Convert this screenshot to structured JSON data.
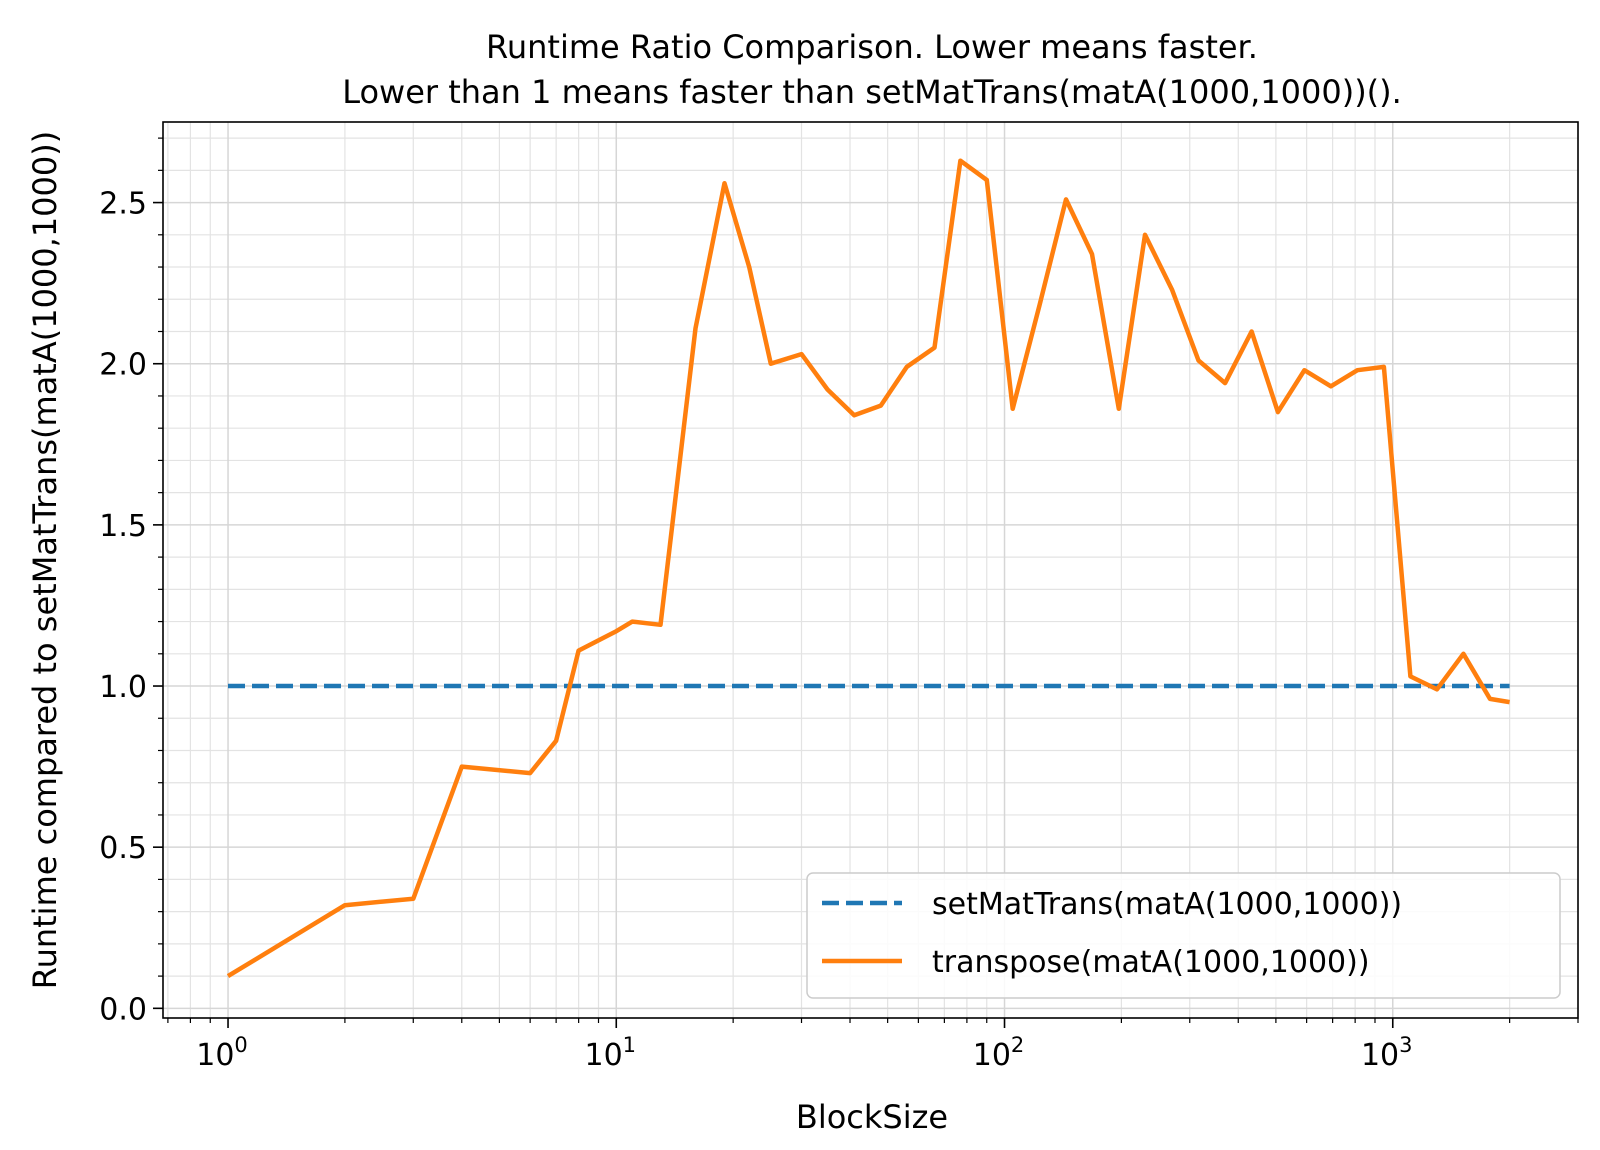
{
  "chart_data": {
    "type": "line",
    "title": "Runtime Ratio Comparison. Lower means faster.",
    "subtitle": "Lower than 1 means faster than setMatTrans(matA(1000,1000))().",
    "xlabel": "BlockSize",
    "ylabel": "Runtime compared to setMatTrans(matA(1000,1000))",
    "xscale": "log",
    "xlim": [
      0.68,
      3000
    ],
    "ylim": [
      -0.03,
      2.75
    ],
    "x_ticks": [
      {
        "value": 1,
        "base": "10",
        "exp": "0"
      },
      {
        "value": 10,
        "base": "10",
        "exp": "1"
      },
      {
        "value": 100,
        "base": "10",
        "exp": "2"
      },
      {
        "value": 1000,
        "base": "10",
        "exp": "3"
      }
    ],
    "y_ticks": [
      {
        "value": 0.0,
        "label": "0.0"
      },
      {
        "value": 0.5,
        "label": "0.5"
      },
      {
        "value": 1.0,
        "label": "1.0"
      },
      {
        "value": 1.5,
        "label": "1.5"
      },
      {
        "value": 2.0,
        "label": "2.0"
      },
      {
        "value": 2.5,
        "label": "2.5"
      }
    ],
    "grid": true,
    "legend_position": "lower right",
    "series": [
      {
        "name": "setMatTrans(matA(1000,1000))",
        "color": "#1f77b4",
        "style": "dashed",
        "x": [
          1,
          2000
        ],
        "y": [
          1.0,
          1.0
        ]
      },
      {
        "name": "transpose(matA(1000,1000))",
        "color": "#ff7f0e",
        "style": "solid",
        "x": [
          1,
          2,
          3,
          4,
          6,
          7,
          8,
          10,
          11,
          13,
          16,
          19,
          22,
          25,
          30,
          35,
          41,
          48,
          56,
          66,
          77,
          90,
          105,
          123,
          144,
          168,
          197,
          230,
          270,
          316,
          370,
          433,
          506,
          592,
          693,
          811,
          949,
          1110,
          1300,
          1520,
          1780,
          2000
        ],
        "y": [
          0.1,
          0.32,
          0.34,
          0.75,
          0.73,
          0.83,
          1.11,
          1.17,
          1.2,
          1.19,
          2.11,
          2.56,
          2.3,
          2.0,
          2.03,
          1.92,
          1.84,
          1.87,
          1.99,
          2.05,
          2.63,
          2.57,
          1.86,
          2.18,
          2.51,
          2.34,
          1.86,
          2.4,
          2.23,
          2.01,
          1.94,
          2.1,
          1.85,
          1.98,
          1.93,
          1.98,
          1.99,
          1.03,
          0.99,
          1.1,
          0.96,
          0.95
        ]
      }
    ]
  }
}
